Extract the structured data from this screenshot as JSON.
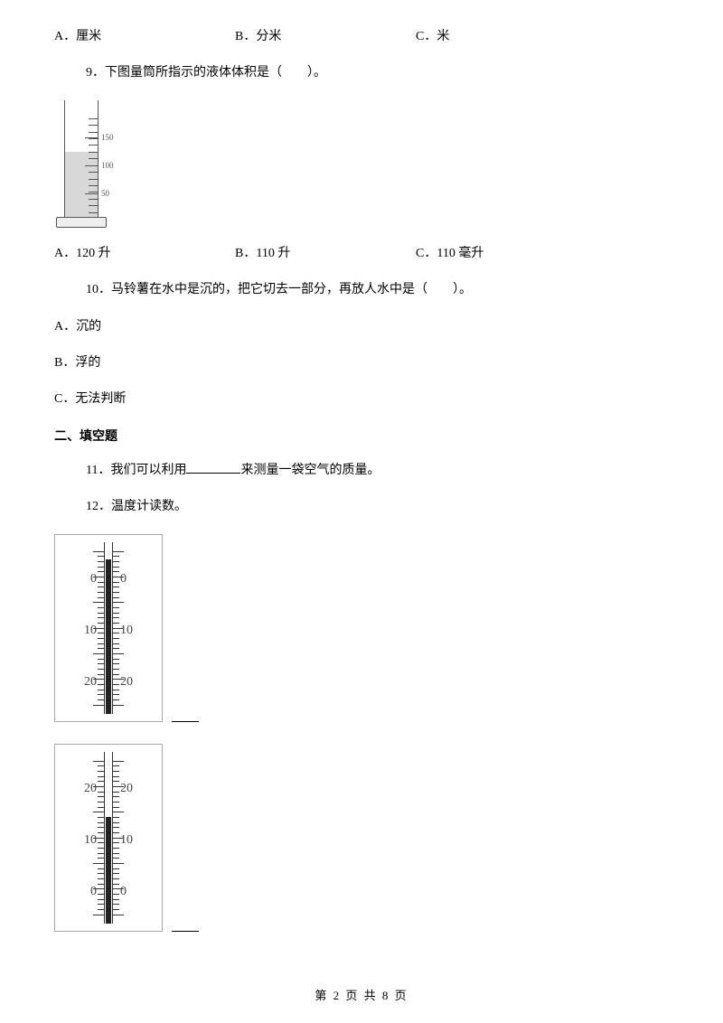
{
  "q_prev_options": {
    "a": "A．厘米",
    "b": "B．分米",
    "c": "C．米"
  },
  "q9": {
    "text": "9．下图量筒所指示的液体体积是（　　）。",
    "cylinder": {
      "major_ticks": [
        150,
        100,
        50
      ],
      "liquid_level_ratio": 0.55,
      "top_label": "",
      "unit": ""
    },
    "options": {
      "a": "A．120 升",
      "b": "B．110 升",
      "c": "C．110 毫升"
    }
  },
  "q10": {
    "text": "10．马铃薯在水中是沉的，把它切去一部分，再放人水中是（　　）。",
    "a": "A．沉的",
    "b": "B．浮的",
    "c": "C．无法判断"
  },
  "section2_title": "二、填空题",
  "q11": {
    "prefix": "11．我们可以利用",
    "suffix": "来测量一袋空气的质量。"
  },
  "q12": {
    "text": "12．温度计读数。",
    "thermo1": {
      "labels": [
        "0",
        "10",
        "20"
      ],
      "label_positions_pct": [
        22,
        52,
        82
      ],
      "fill_height_pct": 90
    },
    "thermo2": {
      "labels": [
        "20",
        "10",
        "0"
      ],
      "label_positions_pct": [
        22,
        52,
        82
      ],
      "fill_height_pct": 62
    }
  },
  "footer": "第 2 页 共 8 页"
}
